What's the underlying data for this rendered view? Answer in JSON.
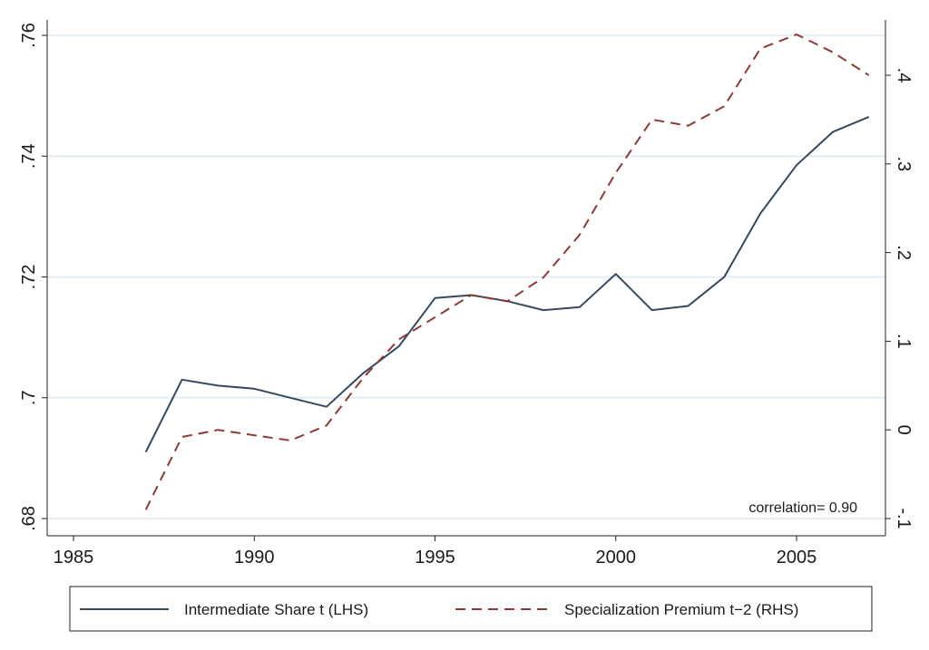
{
  "chart_data": {
    "type": "line",
    "x": [
      1987,
      1988,
      1989,
      1990,
      1991,
      1992,
      1993,
      1994,
      1995,
      1996,
      1997,
      1998,
      1999,
      2000,
      2001,
      2002,
      2003,
      2004,
      2005,
      2006,
      2007
    ],
    "xlim": [
      1985,
      2008
    ],
    "x_ticks": [
      1985,
      1990,
      1995,
      2000,
      2005
    ],
    "x_tick_labels": [
      "1985",
      "1990",
      "1995",
      "2000",
      "2005"
    ],
    "left_axis": {
      "ylim": [
        0.68,
        0.764
      ],
      "ticks": [
        0.68,
        0.7,
        0.72,
        0.74,
        0.76
      ],
      "tick_labels": [
        ".68",
        ".7",
        ".72",
        ".74",
        ".76"
      ]
    },
    "right_axis": {
      "ylim": [
        -0.1,
        0.465
      ],
      "ticks": [
        -0.1,
        0,
        0.1,
        0.2,
        0.3,
        0.4
      ],
      "tick_labels": [
        "-.1",
        "0",
        ".1",
        ".2",
        ".3",
        ".4"
      ]
    },
    "grid": true,
    "series": [
      {
        "name": "Intermediate Share t (LHS)",
        "axis": "left",
        "style": "solid",
        "color": "#34495e",
        "values": [
          0.691,
          0.703,
          0.702,
          0.7015,
          0.7,
          0.6985,
          0.704,
          0.7085,
          0.7165,
          0.717,
          0.716,
          0.7145,
          0.715,
          0.7205,
          0.7145,
          0.7152,
          0.72,
          0.7305,
          0.7385,
          0.744,
          0.7465
        ]
      },
      {
        "name": "Specialization Premium t−2 (RHS)",
        "axis": "right",
        "style": "dashed",
        "color": "#8b3a36",
        "values": [
          -0.09,
          -0.008,
          0,
          -0.006,
          -0.012,
          0.005,
          0.058,
          0.102,
          0.127,
          0.152,
          0.145,
          0.172,
          0.22,
          0.29,
          0.35,
          0.343,
          0.365,
          0.43,
          0.446,
          0.426,
          0.4
        ]
      }
    ],
    "annotation": "correlation= 0.90",
    "legend_position": "bottom"
  }
}
